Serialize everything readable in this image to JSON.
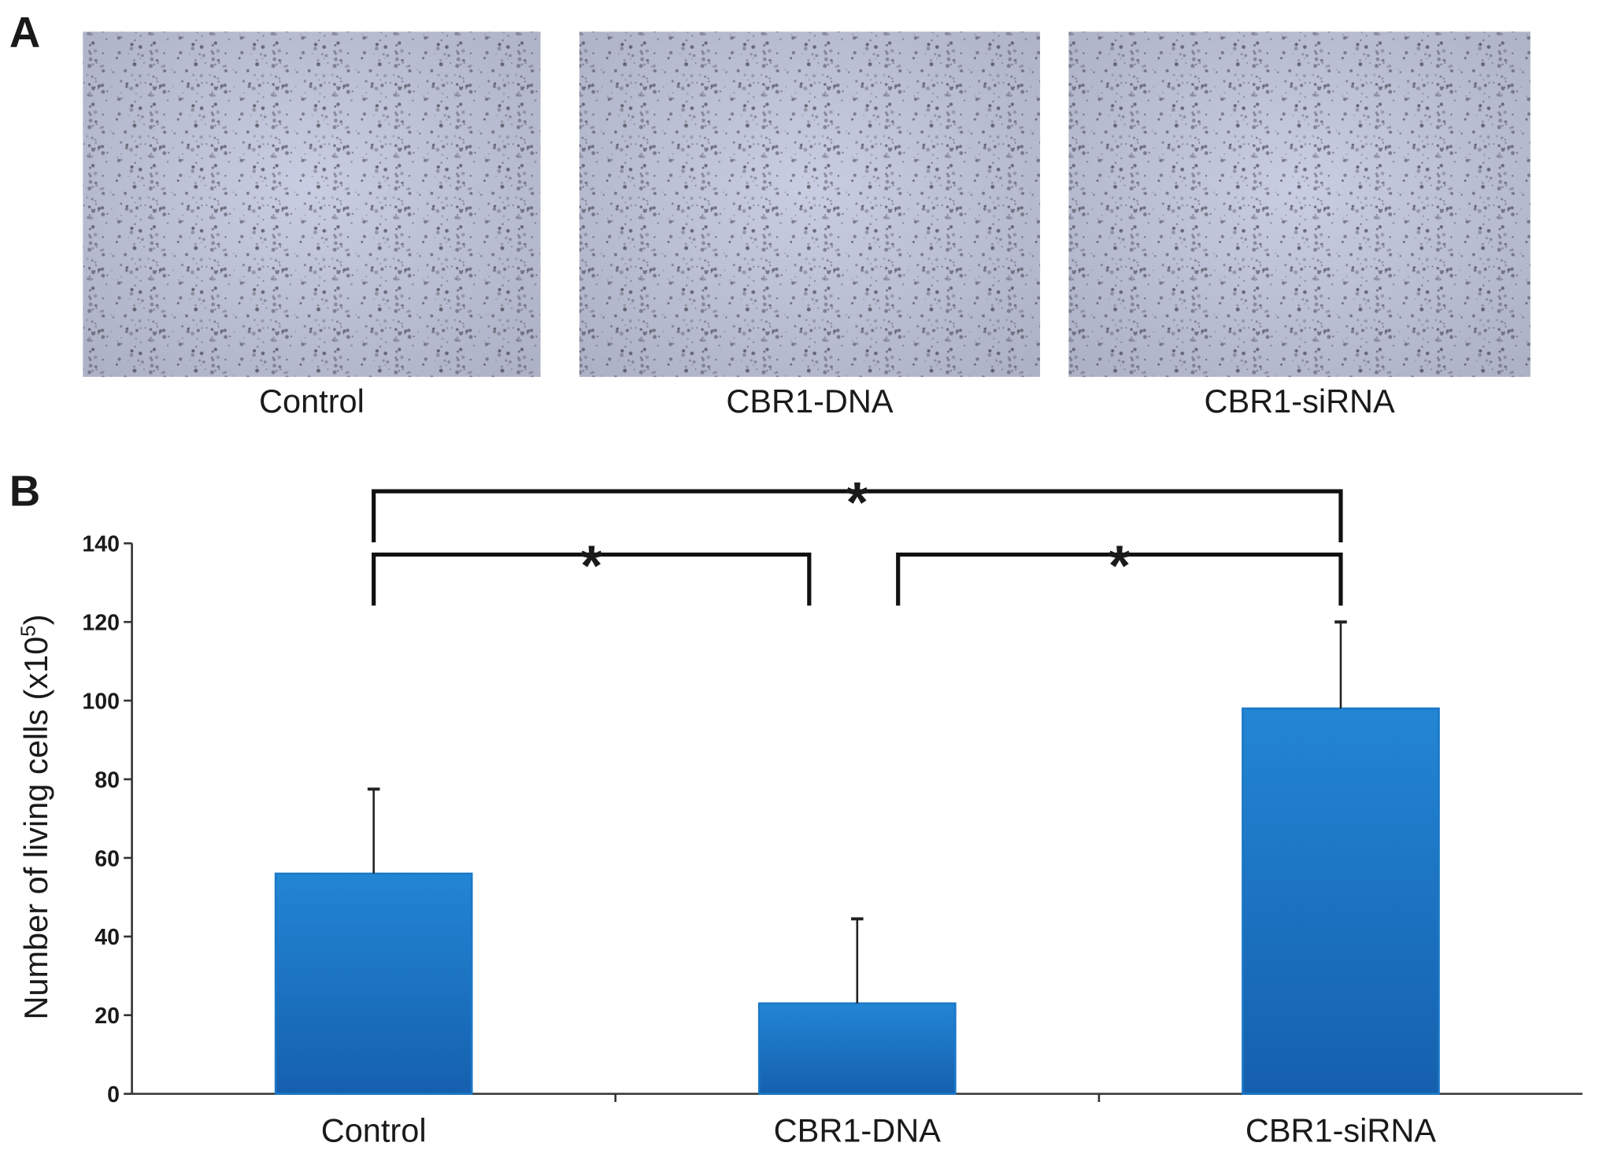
{
  "panel_a": {
    "label": "A",
    "images": [
      {
        "caption": "Control"
      },
      {
        "caption": "CBR1-DNA"
      },
      {
        "caption": "CBR1-siRNA"
      }
    ]
  },
  "chart_data": {
    "type": "bar",
    "panel_label": "B",
    "y_label": {
      "text": "Number of living cells (x10",
      "superscript": "5",
      "suffix": ")"
    },
    "categories": [
      "Control",
      "CBR1-DNA",
      "CBR1-siRNA"
    ],
    "values": [
      56,
      23,
      98
    ],
    "errors": [
      21.5,
      21.5,
      22
    ],
    "color": "#1b78c8",
    "ylim": [
      0,
      140
    ],
    "yticks": [
      0,
      20,
      40,
      60,
      80,
      100,
      120,
      140
    ],
    "annotations": [
      {
        "text": "*",
        "between": [
          0,
          2
        ]
      },
      {
        "text": "*",
        "between": [
          0,
          1
        ]
      },
      {
        "text": "*",
        "between": [
          1,
          2
        ]
      }
    ]
  }
}
